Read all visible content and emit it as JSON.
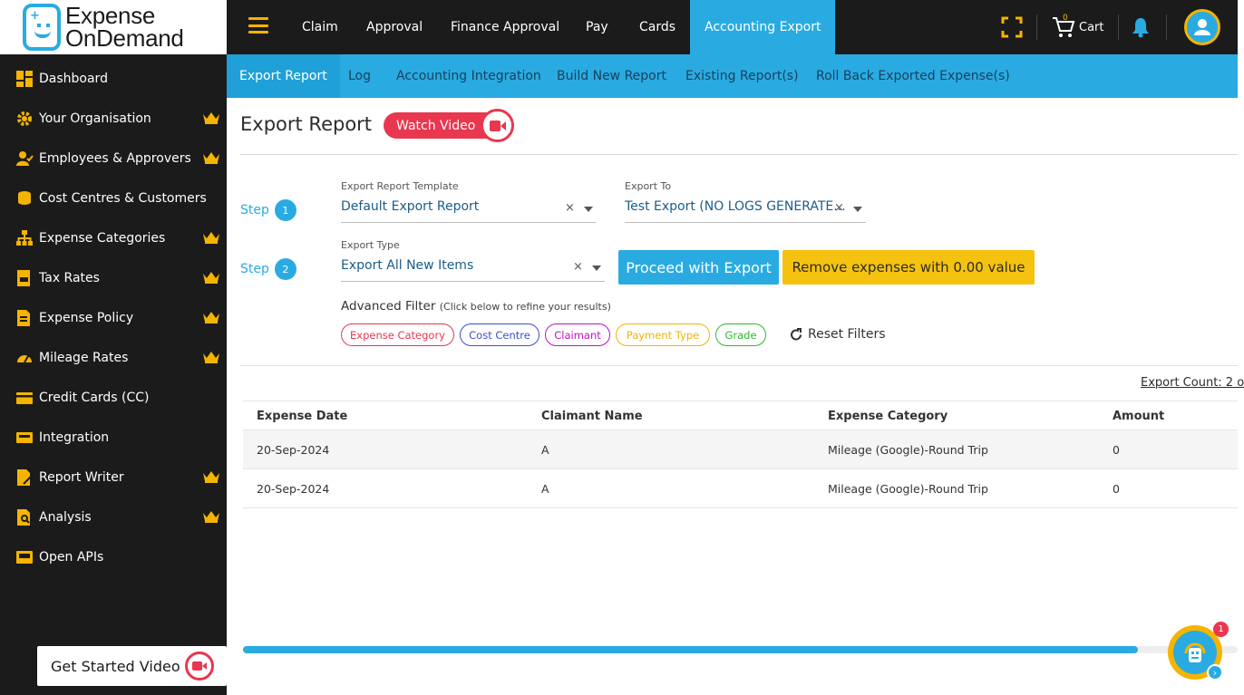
{
  "brand": {
    "line1": "Expense",
    "line2": "OnDemand"
  },
  "sidebar": {
    "items": [
      {
        "label": "Dashboard",
        "icon": "dashboard-icon",
        "premium": false
      },
      {
        "label": "Your Organisation",
        "icon": "organisation-icon",
        "premium": true
      },
      {
        "label": "Employees & Approvers",
        "icon": "employees-icon",
        "premium": true
      },
      {
        "label": "Cost Centres & Customers",
        "icon": "cost-centres-icon",
        "premium": false
      },
      {
        "label": "Expense Categories",
        "icon": "categories-icon",
        "premium": true
      },
      {
        "label": "Tax Rates",
        "icon": "tax-icon",
        "premium": true
      },
      {
        "label": "Expense Policy",
        "icon": "policy-icon",
        "premium": true
      },
      {
        "label": "Mileage Rates",
        "icon": "mileage-icon",
        "premium": true
      },
      {
        "label": "Credit Cards (CC)",
        "icon": "credit-card-icon",
        "premium": false
      },
      {
        "label": "Integration",
        "icon": "integration-icon",
        "premium": false
      },
      {
        "label": "Report Writer",
        "icon": "report-writer-icon",
        "premium": true
      },
      {
        "label": "Analysis",
        "icon": "analysis-icon",
        "premium": true
      },
      {
        "label": "Open APIs",
        "icon": "api-icon",
        "premium": false
      }
    ],
    "get_started": "Get Started Video"
  },
  "topnav": {
    "tabs": [
      "Claim",
      "Approval",
      "Finance Approval",
      "Pay",
      "Cards",
      "Accounting Export"
    ],
    "active": "Accounting Export",
    "cart_label": "Cart",
    "cart_count": "0"
  },
  "subnav": {
    "tabs": [
      "Export Report",
      "Log",
      "Accounting Integration",
      "Build New Report",
      "Existing Report(s)",
      "Roll Back Exported Expense(s)"
    ],
    "active": "Export Report"
  },
  "main": {
    "title": "Export Report",
    "watch_video": "Watch Video",
    "step_label": "Step",
    "step1_num": "1",
    "step2_num": "2",
    "template_label": "Export Report Template",
    "template_value": "Default Export Report",
    "export_to_label": "Export To",
    "export_to_value": "Test Export (NO LOGS GENERATE...",
    "type_label": "Export Type",
    "type_value": "Export All New Items",
    "clear_symbol": "×",
    "proceed_button": "Proceed with Export",
    "remove_button": "Remove expenses with 0.00 value",
    "advanced_filter": "Advanced Filter",
    "advanced_hint": "(Click below to refine your results)",
    "chips": [
      {
        "label": "Expense Category",
        "color": "#e8374f"
      },
      {
        "label": "Cost Centre",
        "color": "#3d4fd1"
      },
      {
        "label": "Claimant",
        "color": "#c113c1"
      },
      {
        "label": "Payment Type",
        "color": "#f5b400"
      },
      {
        "label": "Grade",
        "color": "#2cbb2c"
      }
    ],
    "reset_filters": "Reset Filters",
    "export_count": "Export Count: 2 o"
  },
  "table": {
    "headers": [
      "Expense Date",
      "Claimant Name",
      "Expense Category",
      "Amount"
    ],
    "rows": [
      [
        "20-Sep-2024",
        "A",
        "Mileage (Google)-Round Trip",
        "0"
      ],
      [
        "20-Sep-2024",
        "A",
        "Mileage (Google)-Round Trip",
        "0"
      ]
    ]
  },
  "support": {
    "badge": "1"
  },
  "colors": {
    "accent": "#29abe2",
    "brand_yellow": "#f5b400",
    "sidebar_bg": "#1b1b1b",
    "danger": "#e8374f"
  }
}
